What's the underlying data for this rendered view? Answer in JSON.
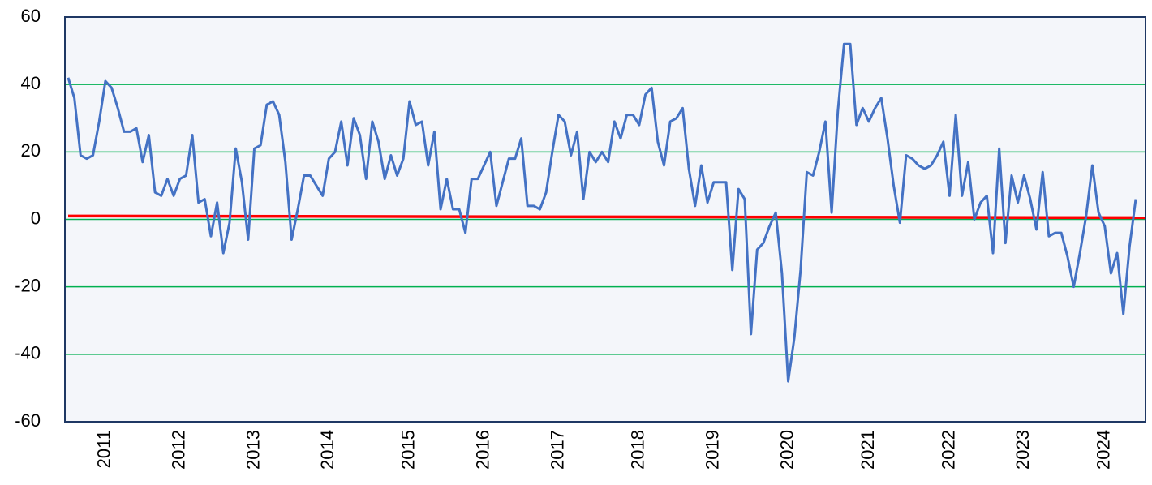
{
  "chart_data": {
    "type": "line",
    "categories": [
      null,
      null,
      null,
      null,
      null,
      null,
      "2011",
      null,
      null,
      null,
      null,
      null,
      null,
      null,
      null,
      null,
      null,
      null,
      "2012",
      null,
      null,
      null,
      null,
      null,
      null,
      null,
      null,
      null,
      null,
      null,
      "2013",
      null,
      null,
      null,
      null,
      null,
      null,
      null,
      null,
      null,
      null,
      null,
      "2014",
      null,
      null,
      null,
      null,
      null,
      null,
      null,
      null,
      null,
      null,
      null,
      null,
      "2015",
      null,
      null,
      null,
      null,
      null,
      null,
      null,
      null,
      null,
      null,
      null,
      "2016",
      null,
      null,
      null,
      null,
      null,
      null,
      null,
      null,
      null,
      null,
      null,
      "2017",
      null,
      null,
      null,
      null,
      null,
      null,
      null,
      null,
      null,
      null,
      null,
      null,
      "2018",
      null,
      null,
      null,
      null,
      null,
      null,
      null,
      null,
      null,
      null,
      null,
      "2019",
      null,
      null,
      null,
      null,
      null,
      null,
      null,
      null,
      null,
      null,
      null,
      "2020",
      null,
      null,
      null,
      null,
      null,
      null,
      null,
      null,
      null,
      null,
      null,
      null,
      "2021",
      null,
      null,
      null,
      null,
      null,
      null,
      null,
      null,
      null,
      null,
      null,
      null,
      "2022",
      null,
      null,
      null,
      null,
      null,
      null,
      null,
      null,
      null,
      null,
      null,
      "2023",
      null,
      null,
      null,
      null,
      null,
      null,
      null,
      null,
      null,
      null,
      null,
      null,
      "2024",
      null,
      null,
      null,
      null,
      null
    ],
    "series": [
      {
        "color": "#4472c4",
        "values": [
          42,
          36,
          19,
          18,
          19,
          29,
          41,
          39,
          33,
          26,
          26,
          27,
          17,
          25,
          8,
          7,
          12,
          7,
          12,
          13,
          25,
          5,
          6,
          -5,
          5,
          -10,
          -1,
          21,
          11,
          -6,
          21,
          22,
          34,
          35,
          31,
          17,
          -6,
          3,
          13,
          13,
          10,
          7,
          18,
          20,
          29,
          16,
          30,
          25,
          12,
          29,
          23,
          12,
          19,
          13,
          18,
          35,
          28,
          29,
          16,
          26,
          3,
          12,
          3,
          3,
          -4,
          12,
          12,
          16,
          20,
          4,
          11,
          18,
          18,
          24,
          4,
          4,
          3,
          8,
          20,
          31,
          29,
          19,
          26,
          6,
          20,
          17,
          20,
          17,
          29,
          24,
          31,
          31,
          28,
          37,
          39,
          23,
          16,
          29,
          30,
          33,
          15,
          4,
          16,
          5,
          11,
          11,
          11,
          -15,
          9,
          6,
          -34,
          -9,
          -7,
          -2,
          2,
          -16,
          -48,
          -35,
          -15,
          14,
          13,
          20,
          29,
          2,
          32,
          52,
          52,
          28,
          33,
          29,
          33,
          36,
          24,
          10,
          -1,
          19,
          18,
          16,
          15,
          16,
          19,
          23,
          7,
          31,
          7,
          17,
          0,
          5,
          7,
          -10,
          21,
          -7,
          13,
          5,
          13,
          6,
          -3,
          14,
          -5,
          -4,
          -4,
          -11,
          -20,
          -10,
          1,
          16,
          2,
          -2,
          -16,
          -10,
          -28,
          -8,
          6
        ]
      }
    ],
    "reference_line": {
      "color": "#ff0000",
      "values": [
        1,
        0.5
      ]
    },
    "ylim": [
      -60,
      60
    ],
    "yticks": [
      -60,
      -40,
      -20,
      0,
      20,
      40,
      60
    ],
    "grid": true,
    "grid_color": "#00b050",
    "plot_background": "#f4f6fa",
    "border_color": "#1f3864"
  }
}
